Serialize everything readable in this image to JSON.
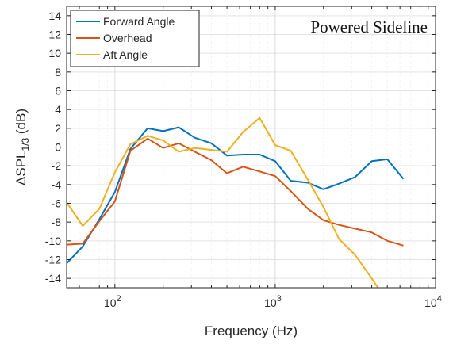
{
  "chart_data": {
    "type": "line",
    "xscale": "log",
    "xlim": [
      50,
      10000
    ],
    "ylim": [
      -15,
      15
    ],
    "grid": true,
    "legend_position": "top-left",
    "annotation": "Powered Sideline",
    "xlabel": "Frequency (Hz)",
    "ylabel": {
      "prefix": "ΔSPL",
      "subscript": "1/3",
      "suffix": " (dB)"
    },
    "x_ticks": [
      {
        "value": 100,
        "base": "10",
        "exp": "2"
      },
      {
        "value": 1000,
        "base": "10",
        "exp": "3"
      },
      {
        "value": 10000,
        "base": "10",
        "exp": "4"
      }
    ],
    "y_ticks": [
      -14,
      -12,
      -10,
      -8,
      -6,
      -4,
      -2,
      0,
      2,
      4,
      6,
      8,
      10,
      12,
      14
    ],
    "series": [
      {
        "name": "Forward Angle",
        "color": "#0072BD",
        "x": [
          50,
          63,
          80,
          100,
          125,
          160,
          200,
          250,
          315,
          400,
          500,
          630,
          800,
          1000,
          1250,
          1600,
          2000,
          2500,
          3150,
          4000,
          5000,
          6300
        ],
        "y": [
          -12.4,
          -10.6,
          -7.7,
          -4.8,
          -0.2,
          2.0,
          1.7,
          2.1,
          1.0,
          0.4,
          -0.9,
          -0.8,
          -0.8,
          -1.5,
          -3.6,
          -3.8,
          -4.5,
          -3.9,
          -3.2,
          -1.5,
          -1.3,
          -3.4
        ]
      },
      {
        "name": "Overhead",
        "color": "#D95319",
        "x": [
          50,
          63,
          80,
          100,
          125,
          160,
          200,
          250,
          315,
          400,
          500,
          630,
          800,
          1000,
          1250,
          1600,
          2000,
          2500,
          3150,
          4000,
          5000,
          6300
        ],
        "y": [
          -10.4,
          -10.3,
          -7.9,
          -5.8,
          -0.4,
          0.9,
          -0.1,
          0.4,
          -0.5,
          -1.4,
          -2.8,
          -2.1,
          -2.6,
          -3.1,
          -4.7,
          -6.6,
          -7.8,
          -8.3,
          -8.7,
          -9.1,
          -10.0,
          -10.5
        ]
      },
      {
        "name": "Aft Angle",
        "color": "#EDB120",
        "x": [
          50,
          63,
          80,
          100,
          125,
          160,
          200,
          250,
          315,
          400,
          500,
          630,
          800,
          1000,
          1250,
          1600,
          2000,
          2500,
          3150,
          4000,
          5000
        ],
        "y": [
          -5.9,
          -8.4,
          -6.6,
          -2.7,
          0.3,
          1.2,
          0.7,
          -0.5,
          -0.1,
          -0.3,
          -0.5,
          1.6,
          3.1,
          0.2,
          -0.4,
          -3.5,
          -6.4,
          -9.8,
          -11.5,
          -14.0,
          -16.5
        ]
      }
    ]
  }
}
